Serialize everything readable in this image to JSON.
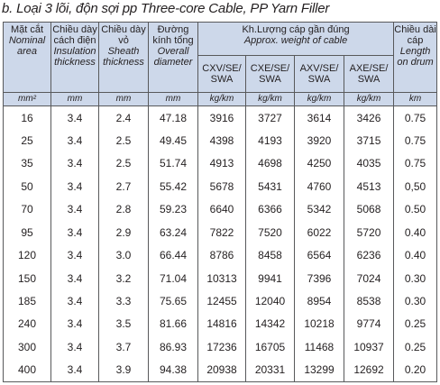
{
  "title": "b. Loại 3 lõi, độn sợi pp  Three-core Cable, PP Yarn Filler",
  "headers": {
    "area": {
      "vn": "Mặt cắt",
      "en": "Nominal area"
    },
    "insulation": {
      "vn": "Chiều dày cách điện",
      "en": "Insulation thickness"
    },
    "sheath": {
      "vn": "Chiều dày vỏ",
      "en": "Sheath thickness"
    },
    "diameter": {
      "vn": "Đường kính tổng",
      "en": "Overall diameter"
    },
    "weight": {
      "vn": "Kh.Lượng cáp gần đúng",
      "en": "Approx. weight of cable"
    },
    "weight_cols": [
      "CXV/SE/ SWA",
      "CXE/SE/ SWA",
      "AXV/SE/ SWA",
      "AXE/SE/ SWA"
    ],
    "length": {
      "vn": "Chiều dài cáp",
      "en": "Length on drum"
    }
  },
  "units": [
    "mm²",
    "mm",
    "mm",
    "mm",
    "kg/km",
    "kg/km",
    "kg/km",
    "kg/km",
    "km"
  ],
  "rows": [
    [
      "16",
      "3.4",
      "2.4",
      "47.18",
      "3916",
      "3727",
      "3614",
      "3426",
      "0.75"
    ],
    [
      "25",
      "3.4",
      "2.5",
      "49.45",
      "4398",
      "4193",
      "3920",
      "3715",
      "0.75"
    ],
    [
      "35",
      "3.4",
      "2.5",
      "51.74",
      "4913",
      "4698",
      "4250",
      "4035",
      "0.75"
    ],
    [
      "50",
      "3.4",
      "2.7",
      "55.42",
      "5678",
      "5431",
      "4760",
      "4513",
      "0,50"
    ],
    [
      "70",
      "3.4",
      "2.8",
      "59.23",
      "6640",
      "6366",
      "5342",
      "5068",
      "0.50"
    ],
    [
      "95",
      "3.4",
      "2.9",
      "63.24",
      "7822",
      "7520",
      "6022",
      "5720",
      "0.40"
    ],
    [
      "120",
      "3.4",
      "3.0",
      "66.44",
      "8786",
      "8458",
      "6564",
      "6236",
      "0.40"
    ],
    [
      "150",
      "3.4",
      "3.2",
      "71.04",
      "10313",
      "9941",
      "7396",
      "7024",
      "0.30"
    ],
    [
      "185",
      "3.4",
      "3.3",
      "75.65",
      "12455",
      "12040",
      "8954",
      "8538",
      "0.30"
    ],
    [
      "240",
      "3.4",
      "3.5",
      "81.66",
      "14816",
      "14342",
      "10218",
      "9774",
      "0.25"
    ],
    [
      "300",
      "3.4",
      "3.7",
      "86.93",
      "17236",
      "16705",
      "11468",
      "10937",
      "0.25"
    ],
    [
      "400",
      "3.4",
      "3.9",
      "94.38",
      "20938",
      "20331",
      "13299",
      "12692",
      "0.20"
    ]
  ]
}
